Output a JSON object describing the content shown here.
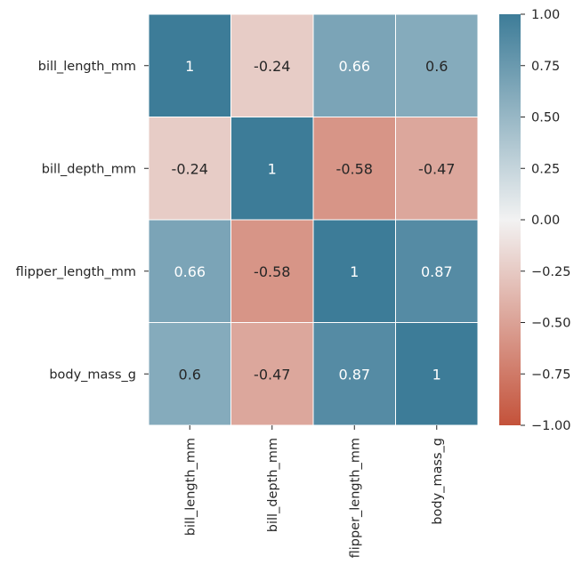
{
  "chart_data": {
    "type": "heatmap",
    "title": "",
    "xlabel": "",
    "ylabel": "",
    "x_categories": [
      "bill_length_mm",
      "bill_depth_mm",
      "flipper_length_mm",
      "body_mass_g"
    ],
    "y_categories": [
      "bill_length_mm",
      "bill_depth_mm",
      "flipper_length_mm",
      "body_mass_g"
    ],
    "values": [
      [
        1,
        -0.24,
        0.66,
        0.6
      ],
      [
        -0.24,
        1,
        -0.58,
        -0.47
      ],
      [
        0.66,
        -0.58,
        1,
        0.87
      ],
      [
        0.6,
        -0.47,
        0.87,
        1
      ]
    ],
    "cell_labels": [
      [
        "1",
        "-0.24",
        "0.66",
        "0.6"
      ],
      [
        "-0.24",
        "1",
        "-0.58",
        "-0.47"
      ],
      [
        "0.66",
        "-0.58",
        "1",
        "0.87"
      ],
      [
        "0.6",
        "-0.47",
        "0.87",
        "1"
      ]
    ],
    "vmin": -1,
    "vmax": 1,
    "colorbar": {
      "ticks": [
        1,
        0.75,
        0.5,
        0.25,
        0,
        -0.25,
        -0.5,
        -0.75,
        -1
      ],
      "tick_labels": [
        "1.00",
        "0.75",
        "0.50",
        "0.25",
        "0.00",
        "−0.25",
        "−0.50",
        "−0.75",
        "−1.00"
      ]
    },
    "colormap": {
      "negative": "#c4523a",
      "center": "#f2f2f2",
      "positive": "#3d7c98"
    },
    "grid": true
  }
}
